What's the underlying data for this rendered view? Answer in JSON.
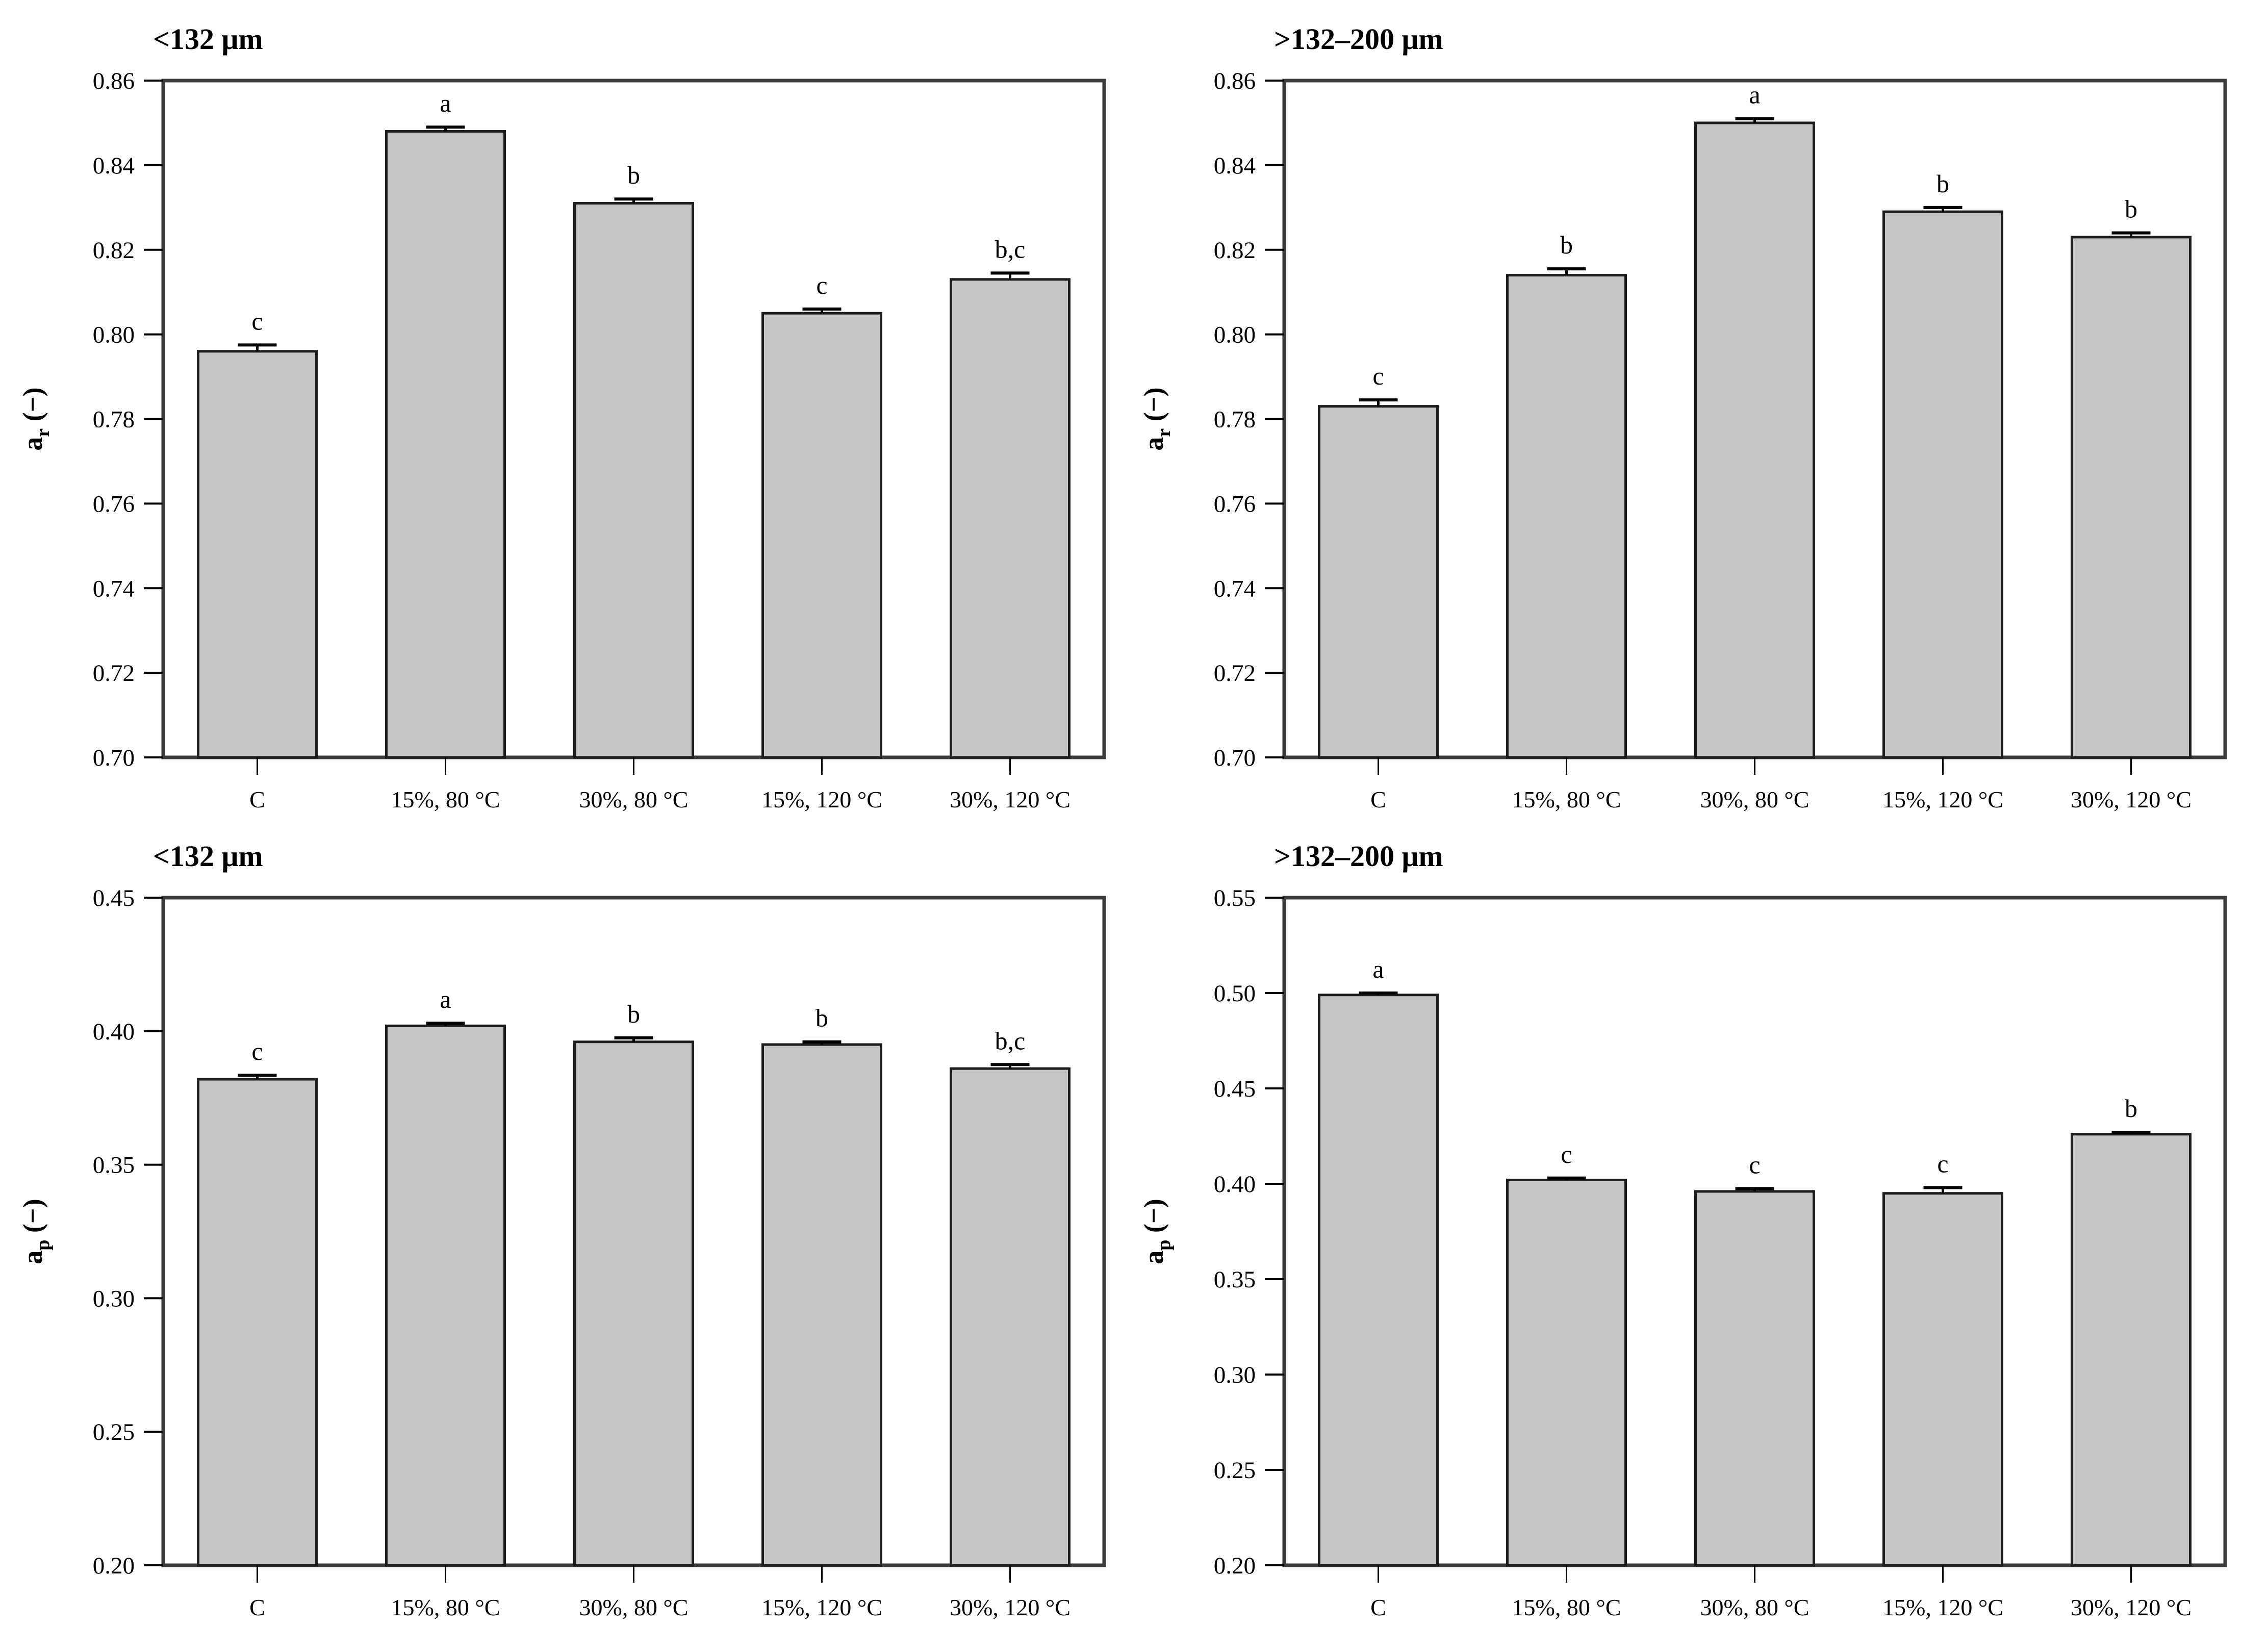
{
  "page": {
    "background": "#ffffff",
    "figure_description": "Four bar charts comparing a_r and a_p coefficients for two particle size fractions under five treatments"
  },
  "styles": {
    "bar_fill": "#c5c5c5",
    "bar_stroke": "#1d1d1d",
    "axis_color": "#3c3c3c",
    "error_color": "#000000",
    "text_color": "#000000"
  },
  "chart_data": [
    {
      "type": "bar",
      "position": "top-left",
      "title": "<132 μm",
      "ylabel": {
        "letter": "a",
        "sub": "r",
        "unit": "(−)"
      },
      "xlabel": "",
      "ylim": [
        0.7,
        0.86
      ],
      "ytick_step": 0.02,
      "ytick_decimals": 2,
      "grid": false,
      "legend": null,
      "categories": [
        "C",
        "15%, 80 °C",
        "30%, 80 °C",
        "15%, 120 °C",
        "30%, 120 °C"
      ],
      "values": [
        0.796,
        0.848,
        0.831,
        0.805,
        0.813
      ],
      "errors": [
        0.0015,
        0.001,
        0.001,
        0.001,
        0.0015
      ],
      "sig_letters": [
        "c",
        "a",
        "b",
        "c",
        "b,c"
      ]
    },
    {
      "type": "bar",
      "position": "top-right",
      "title": ">132–200 μm",
      "ylabel": {
        "letter": "a",
        "sub": "r",
        "unit": "(−)"
      },
      "xlabel": "",
      "ylim": [
        0.7,
        0.86
      ],
      "ytick_step": 0.02,
      "ytick_decimals": 2,
      "grid": false,
      "legend": null,
      "categories": [
        "C",
        "15%, 80 °C",
        "30%, 80 °C",
        "15%, 120 °C",
        "30%, 120 °C"
      ],
      "values": [
        0.783,
        0.814,
        0.85,
        0.829,
        0.823
      ],
      "errors": [
        0.0015,
        0.0015,
        0.001,
        0.001,
        0.001
      ],
      "sig_letters": [
        "c",
        "b",
        "a",
        "b",
        "b"
      ]
    },
    {
      "type": "bar",
      "position": "bottom-left",
      "title": "<132 μm",
      "ylabel": {
        "letter": "a",
        "sub": "p",
        "unit": "(−)"
      },
      "xlabel": "",
      "ylim": [
        0.2,
        0.45
      ],
      "ytick_step": 0.05,
      "ytick_decimals": 2,
      "grid": false,
      "legend": null,
      "categories": [
        "C",
        "15%, 80 °C",
        "30%, 80 °C",
        "15%, 120 °C",
        "30%, 120 °C"
      ],
      "values": [
        0.382,
        0.402,
        0.396,
        0.395,
        0.386
      ],
      "errors": [
        0.0015,
        0.001,
        0.0015,
        0.001,
        0.0015
      ],
      "sig_letters": [
        "c",
        "a",
        "b",
        "b",
        "b,c"
      ]
    },
    {
      "type": "bar",
      "position": "bottom-right",
      "title": ">132–200 μm",
      "ylabel": {
        "letter": "a",
        "sub": "p",
        "unit": "(−)"
      },
      "xlabel": "",
      "ylim": [
        0.2,
        0.55
      ],
      "ytick_step": 0.05,
      "ytick_decimals": 2,
      "grid": false,
      "legend": null,
      "categories": [
        "C",
        "15%, 80 °C",
        "30%, 80 °C",
        "15%, 120 °C",
        "30%, 120 °C"
      ],
      "values": [
        0.499,
        0.402,
        0.396,
        0.395,
        0.426
      ],
      "errors": [
        0.001,
        0.001,
        0.0015,
        0.003,
        0.001
      ],
      "sig_letters": [
        "a",
        "c",
        "c",
        "c",
        "b"
      ]
    }
  ]
}
